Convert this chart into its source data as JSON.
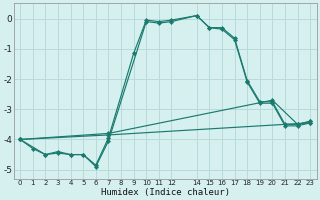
{
  "xlabel": "Humidex (Indice chaleur)",
  "background_color": "#d6f0f0",
  "grid_color": "#b8dada",
  "line_color": "#1a7a6e",
  "xlim": [
    -0.5,
    23.5
  ],
  "ylim": [
    -5.3,
    0.5
  ],
  "xticks": [
    0,
    1,
    2,
    3,
    4,
    5,
    6,
    7,
    8,
    9,
    10,
    11,
    12,
    14,
    15,
    16,
    17,
    18,
    19,
    20,
    21,
    22,
    23
  ],
  "yticks": [
    0,
    -1,
    -2,
    -3,
    -4,
    -5
  ],
  "series": [
    {
      "x": [
        0,
        1,
        2,
        3,
        4,
        5,
        6,
        7,
        9,
        10,
        11,
        12,
        14,
        15,
        16,
        17,
        18,
        19,
        20,
        21,
        22,
        23
      ],
      "y": [
        -4.0,
        -4.3,
        -4.5,
        -4.45,
        -4.5,
        -4.5,
        -4.85,
        -3.95,
        -1.15,
        -0.05,
        -0.1,
        -0.05,
        0.1,
        -0.3,
        -0.3,
        -0.65,
        -2.05,
        -2.75,
        -2.75,
        -3.5,
        -3.5,
        -3.4
      ]
    },
    {
      "x": [
        0,
        2,
        3,
        4,
        5,
        6,
        7,
        10,
        11,
        12,
        14,
        15,
        16,
        17,
        18,
        19,
        20,
        21,
        22,
        23
      ],
      "y": [
        -4.0,
        -4.5,
        -4.4,
        -4.5,
        -4.5,
        -4.9,
        -4.05,
        -0.1,
        -0.15,
        -0.1,
        0.1,
        -0.3,
        -0.35,
        -0.7,
        -2.1,
        -2.8,
        -2.8,
        -3.55,
        -3.55,
        -3.45
      ]
    },
    {
      "x": [
        0,
        7,
        23
      ],
      "y": [
        -4.0,
        -3.85,
        -3.45
      ]
    },
    {
      "x": [
        0,
        7,
        20,
        22,
        23
      ],
      "y": [
        -4.0,
        -3.8,
        -2.7,
        -3.5,
        -3.4
      ]
    }
  ]
}
